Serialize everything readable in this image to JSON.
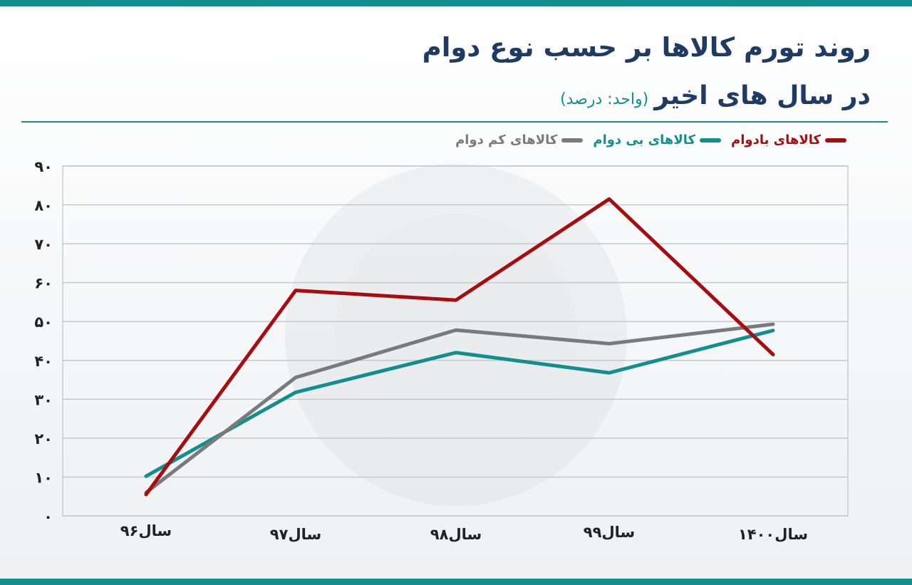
{
  "header": {
    "title": "روند تورم کالاها بر حسب نوع دوام",
    "subtitle": "در سال های اخیر",
    "unit": "(واحد: درصد)"
  },
  "chart_data": {
    "type": "line",
    "categories": [
      "سال۹۶",
      "سال۹۷",
      "سال۹۸",
      "سال۹۹",
      "سال۱۴۰۰"
    ],
    "ylim": [
      0,
      90
    ],
    "yticks": [
      0,
      10,
      20,
      30,
      40,
      50,
      60,
      70,
      80,
      90
    ],
    "ytick_labels": [
      "۰",
      "۱۰",
      "۲۰",
      "۳۰",
      "۴۰",
      "۵۰",
      "۶۰",
      "۷۰",
      "۸۰",
      "۹۰"
    ],
    "grid": true,
    "legend_position": "top-right",
    "series": [
      {
        "name": "کالاهای بادوام",
        "color": "#a50d10",
        "values": [
          5.5,
          58,
          55.5,
          81.5,
          41.5
        ]
      },
      {
        "name": "کالاهای بی دوام",
        "color": "#138e8f",
        "values": [
          10.2,
          31.8,
          42,
          36.8,
          47.7
        ]
      },
      {
        "name": "کالاهای کم دوام",
        "color": "#7a7a7c",
        "values": [
          6,
          35.6,
          47.8,
          44.3,
          49.3
        ]
      }
    ]
  }
}
